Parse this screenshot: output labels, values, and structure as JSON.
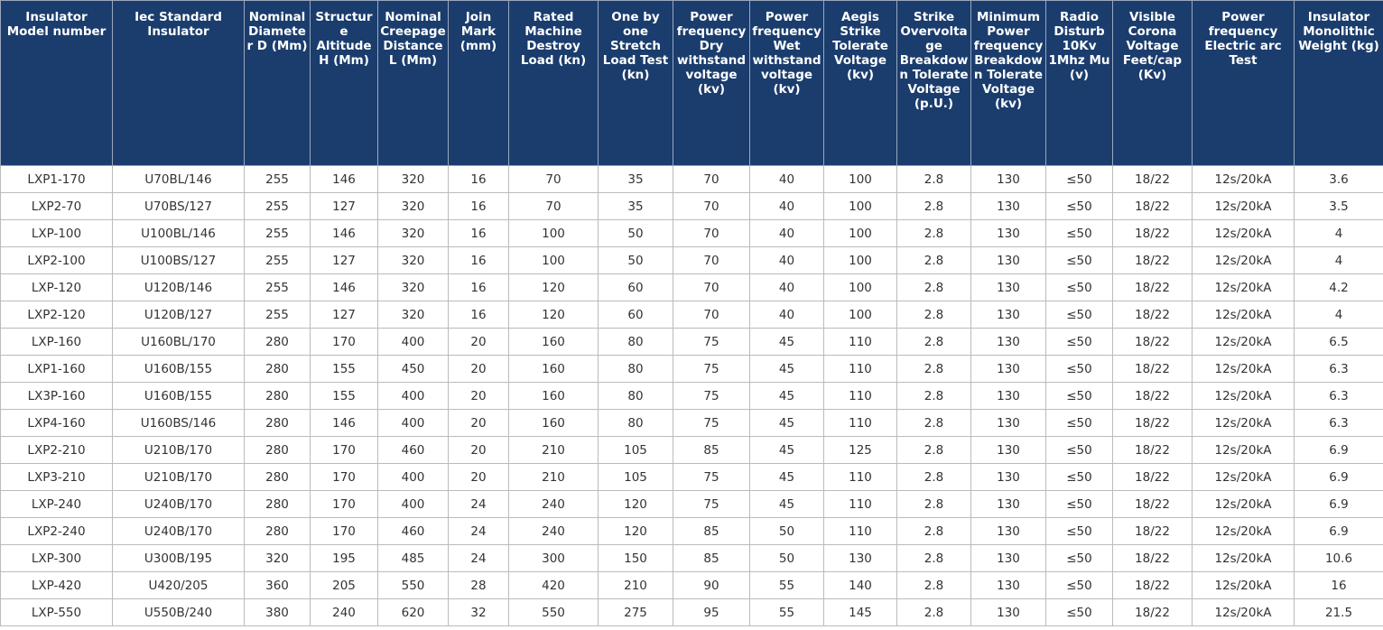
{
  "table": {
    "headers": [
      "Insulator Model number",
      "Iec Standard Insulator",
      "Nominal Diameter D (Mm)",
      "Structure Altitude H (Mm)",
      "Nominal Creepage Distance L (Mm)",
      "Join Mark (mm)",
      "Rated Machine Destroy Load (kn)",
      "One by one Stretch Load Test (kn)",
      "Power frequency Dry withstand voltage (kv)",
      "Power frequency Wet withstand voltage (kv)",
      "Aegis Strike Tolerate Voltage (kv)",
      "Strike Overvoltage Breakdown Tolerate Voltage (p.U.)",
      "Minimum Power frequency Breakdown Tolerate Voltage (kv)",
      "Radio Disturb 10Kv 1Mhz Mu (v)",
      "Visible Corona Voltage Feet/cap (Kv)",
      "Power frequency Electric arc Test",
      "Insulator Monolithic Weight (kg)"
    ],
    "rows": [
      [
        "LXP1-170",
        "U70BL/146",
        "255",
        "146",
        "320",
        "16",
        "70",
        "35",
        "70",
        "40",
        "100",
        "2.8",
        "130",
        "≤50",
        "18/22",
        "12s/20kA",
        "3.6"
      ],
      [
        "LXP2-70",
        "U70BS/127",
        "255",
        "127",
        "320",
        "16",
        "70",
        "35",
        "70",
        "40",
        "100",
        "2.8",
        "130",
        "≤50",
        "18/22",
        "12s/20kA",
        "3.5"
      ],
      [
        "LXP-100",
        "U100BL/146",
        "255",
        "146",
        "320",
        "16",
        "100",
        "50",
        "70",
        "40",
        "100",
        "2.8",
        "130",
        "≤50",
        "18/22",
        "12s/20kA",
        "4"
      ],
      [
        "LXP2-100",
        "U100BS/127",
        "255",
        "127",
        "320",
        "16",
        "100",
        "50",
        "70",
        "40",
        "100",
        "2.8",
        "130",
        "≤50",
        "18/22",
        "12s/20kA",
        "4"
      ],
      [
        "LXP-120",
        "U120B/146",
        "255",
        "146",
        "320",
        "16",
        "120",
        "60",
        "70",
        "40",
        "100",
        "2.8",
        "130",
        "≤50",
        "18/22",
        "12s/20kA",
        "4.2"
      ],
      [
        "LXP2-120",
        "U120B/127",
        "255",
        "127",
        "320",
        "16",
        "120",
        "60",
        "70",
        "40",
        "100",
        "2.8",
        "130",
        "≤50",
        "18/22",
        "12s/20kA",
        "4"
      ],
      [
        "LXP-160",
        "U160BL/170",
        "280",
        "170",
        "400",
        "20",
        "160",
        "80",
        "75",
        "45",
        "110",
        "2.8",
        "130",
        "≤50",
        "18/22",
        "12s/20kA",
        "6.5"
      ],
      [
        "LXP1-160",
        "U160B/155",
        "280",
        "155",
        "450",
        "20",
        "160",
        "80",
        "75",
        "45",
        "110",
        "2.8",
        "130",
        "≤50",
        "18/22",
        "12s/20kA",
        "6.3"
      ],
      [
        "LX3P-160",
        "U160B/155",
        "280",
        "155",
        "400",
        "20",
        "160",
        "80",
        "75",
        "45",
        "110",
        "2.8",
        "130",
        "≤50",
        "18/22",
        "12s/20kA",
        "6.3"
      ],
      [
        "LXP4-160",
        "U160BS/146",
        "280",
        "146",
        "400",
        "20",
        "160",
        "80",
        "75",
        "45",
        "110",
        "2.8",
        "130",
        "≤50",
        "18/22",
        "12s/20kA",
        "6.3"
      ],
      [
        "LXP2-210",
        "U210B/170",
        "280",
        "170",
        "460",
        "20",
        "210",
        "105",
        "85",
        "45",
        "125",
        "2.8",
        "130",
        "≤50",
        "18/22",
        "12s/20kA",
        "6.9"
      ],
      [
        "LXP3-210",
        "U210B/170",
        "280",
        "170",
        "400",
        "20",
        "210",
        "105",
        "75",
        "45",
        "110",
        "2.8",
        "130",
        "≤50",
        "18/22",
        "12s/20kA",
        "6.9"
      ],
      [
        "LXP-240",
        "U240B/170",
        "280",
        "170",
        "400",
        "24",
        "240",
        "120",
        "75",
        "45",
        "110",
        "2.8",
        "130",
        "≤50",
        "18/22",
        "12s/20kA",
        "6.9"
      ],
      [
        "LXP2-240",
        "U240B/170",
        "280",
        "170",
        "460",
        "24",
        "240",
        "120",
        "85",
        "50",
        "110",
        "2.8",
        "130",
        "≤50",
        "18/22",
        "12s/20kA",
        "6.9"
      ],
      [
        "LXP-300",
        "U300B/195",
        "320",
        "195",
        "485",
        "24",
        "300",
        "150",
        "85",
        "50",
        "130",
        "2.8",
        "130",
        "≤50",
        "18/22",
        "12s/20kA",
        "10.6"
      ],
      [
        "LXP-420",
        "U420/205",
        "360",
        "205",
        "550",
        "28",
        "420",
        "210",
        "90",
        "55",
        "140",
        "2.8",
        "130",
        "≤50",
        "18/22",
        "12s/20kA",
        "16"
      ],
      [
        "LXP-550",
        "U550B/240",
        "380",
        "240",
        "620",
        "32",
        "550",
        "275",
        "95",
        "55",
        "145",
        "2.8",
        "130",
        "≤50",
        "18/22",
        "12s/20kA",
        "21.5"
      ]
    ]
  }
}
